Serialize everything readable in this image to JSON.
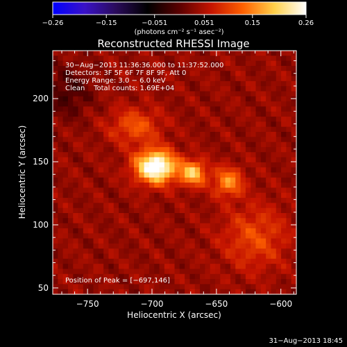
{
  "chart_data": {
    "type": "heatmap",
    "title": "Reconstructed RHESSI Image",
    "xlabel": "Heliocentric X (arcsec)",
    "ylabel": "Heliocentric Y (arcsec)",
    "xlim": [
      -777,
      -588
    ],
    "ylim": [
      45,
      238
    ],
    "x_ticks": [
      -750,
      -700,
      -650,
      -600
    ],
    "x_tick_labels": [
      "−750",
      "−700",
      "−650",
      "−600"
    ],
    "y_ticks": [
      50,
      100,
      150,
      200
    ],
    "y_tick_labels": [
      "50",
      "100",
      "150",
      "200"
    ],
    "colorbar": {
      "min": -0.26,
      "max": 0.26,
      "ticks": [
        -0.26,
        -0.15,
        -0.051,
        0.051,
        0.15,
        0.26
      ],
      "tick_labels": [
        "−0.26",
        "−0.15",
        "−0.051",
        "0.051",
        "0.15",
        "0.26"
      ],
      "units_label": "(photons cm⁻² s⁻¹ asec⁻²)",
      "stops": [
        "#0000ff",
        "#3a12c8",
        "#2a0b5a",
        "#000000",
        "#5a0000",
        "#c41400",
        "#ff6000",
        "#ffd04a",
        "#ffffff"
      ]
    },
    "annotations": [
      "30−Aug−2013 11:36:36.000 to 11:37:52.000",
      "Detectors: 3F 5F 6F 7F 8F 9F, Att 0",
      "Energy Range: 3.0 − 6.0 keV",
      "Clean    Total counts: 1.69E+04"
    ],
    "peak_label": "Position of Peak = [−697,146]",
    "peak": {
      "x": -697,
      "y": 146
    },
    "sources": [
      {
        "x": -697,
        "y": 146,
        "amp": 0.26,
        "sx": 11,
        "sy": 9
      },
      {
        "x": -668,
        "y": 141,
        "amp": 0.16,
        "sx": 7,
        "sy": 7
      },
      {
        "x": -641,
        "y": 134,
        "amp": 0.12,
        "sx": 8,
        "sy": 8
      },
      {
        "x": -713,
        "y": 178,
        "amp": 0.08,
        "sx": 14,
        "sy": 10
      },
      {
        "x": -620,
        "y": 90,
        "amp": 0.07,
        "sx": 18,
        "sy": 18
      }
    ],
    "background_level": 0.035,
    "negative_region": {
      "x": -765,
      "y": 205,
      "amp": -0.05,
      "sx": 12,
      "sy": 14
    }
  },
  "footer": {
    "timestamp": "31−Aug−2013 18:45"
  }
}
